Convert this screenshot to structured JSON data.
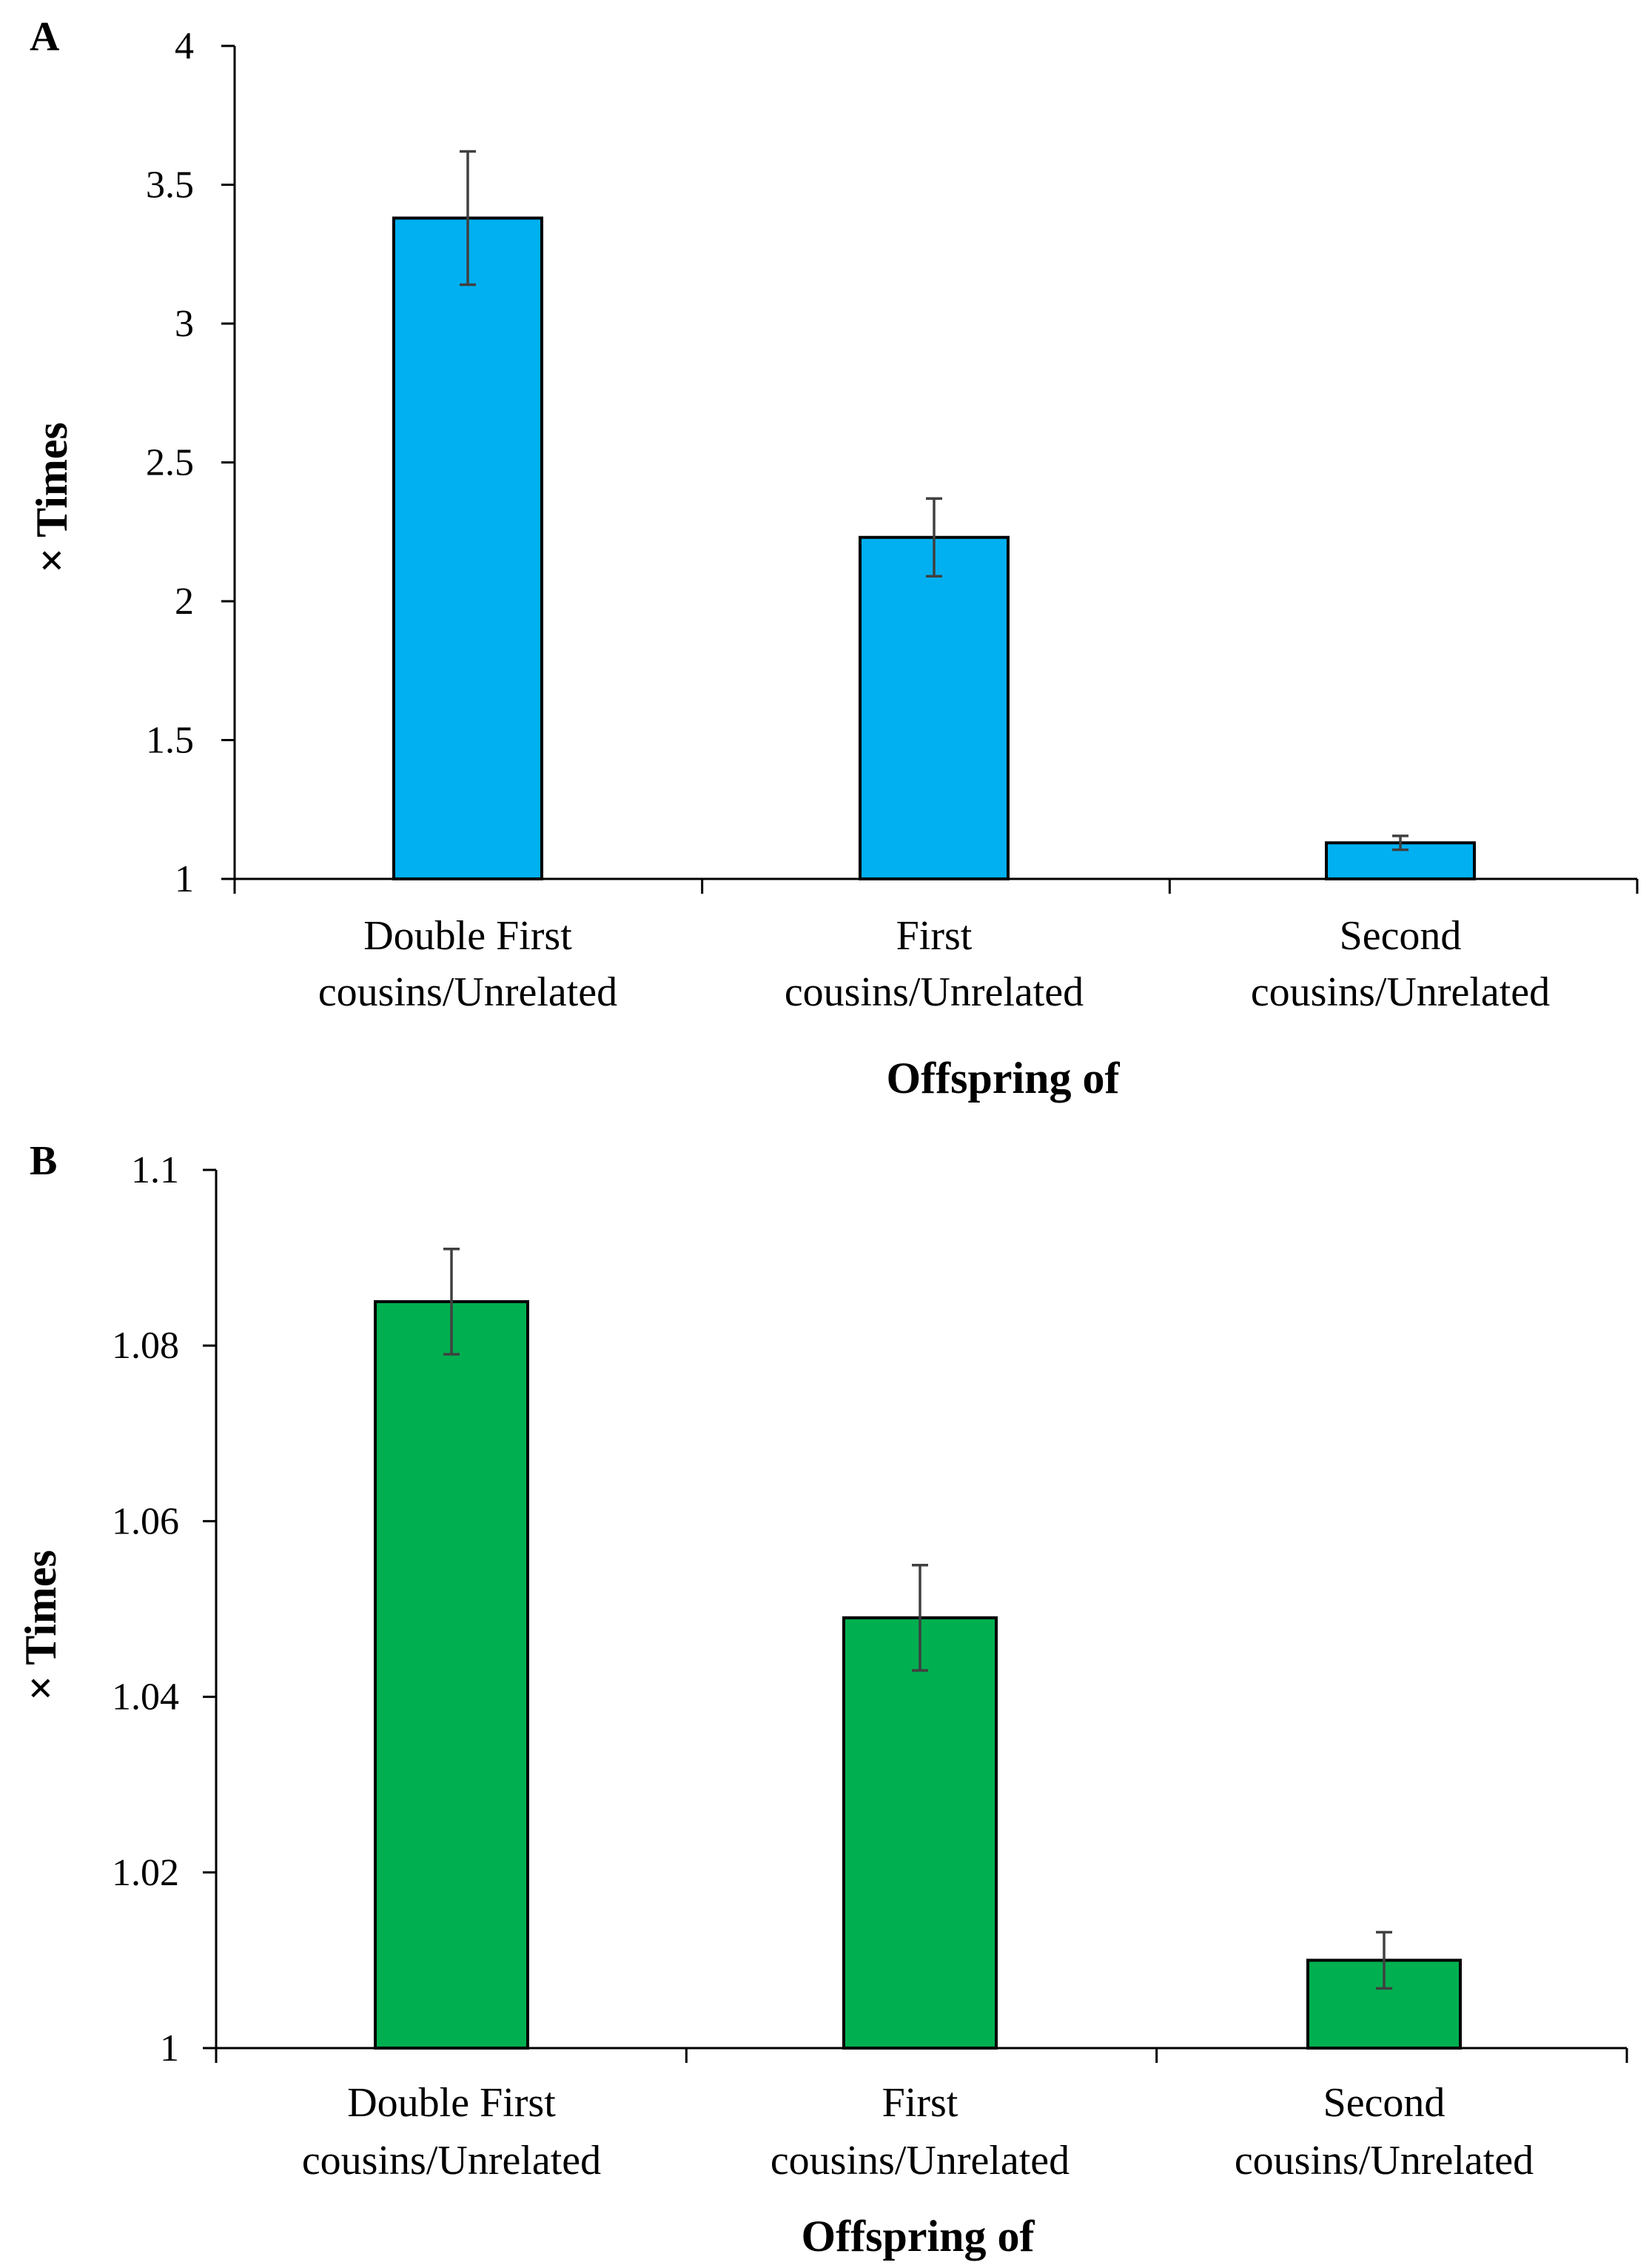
{
  "chart_data": [
    {
      "panel": "A",
      "type": "bar",
      "categories": [
        [
          "Double First",
          "cousins/Unrelated"
        ],
        [
          "First",
          "cousins/Unrelated"
        ],
        [
          "Second",
          "cousins/Unrelated"
        ]
      ],
      "values": [
        3.38,
        2.23,
        1.13
      ],
      "error": [
        0.24,
        0.14,
        0.025
      ],
      "ylim": [
        1,
        4
      ],
      "yticks": [
        "1",
        "1.5",
        "2",
        "2.5",
        "3",
        "3.5",
        "4"
      ],
      "ylabel": "× Times",
      "xlabel": "Offspring of",
      "color": "#00B0F0"
    },
    {
      "panel": "B",
      "type": "bar",
      "categories": [
        [
          "Double First",
          "cousins/Unrelated"
        ],
        [
          "First",
          "cousins/Unrelated"
        ],
        [
          "Second",
          "cousins/Unrelated"
        ]
      ],
      "values": [
        1.085,
        1.049,
        1.01
      ],
      "error": [
        0.006,
        0.006,
        0.0032
      ],
      "ylim": [
        1,
        1.1
      ],
      "yticks": [
        "1",
        "1.02",
        "1.04",
        "1.06",
        "1.08",
        "1.1"
      ],
      "ylabel": "× Times",
      "xlabel": "Offspring of",
      "color": "#00B050"
    }
  ]
}
